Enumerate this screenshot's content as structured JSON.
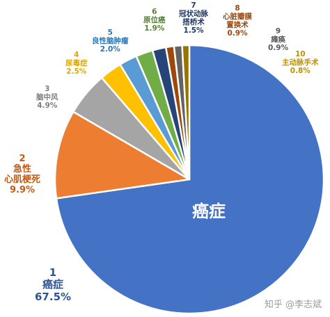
{
  "chart_data": {
    "type": "pie",
    "start_angle_deg": 0,
    "direction": "clockwise",
    "slices": [
      {
        "rank": "1",
        "name": "癌症",
        "value": 67.5,
        "pct": "67.5%",
        "color": "#4472C4",
        "label_color": "#2F5597"
      },
      {
        "rank": "2",
        "name": "急性心肌梗死",
        "name_lines": [
          "急性",
          "心肌梗死"
        ],
        "value": 9.9,
        "pct": "9.9%",
        "color": "#ED7D31",
        "label_color": "#C55A11"
      },
      {
        "rank": "3",
        "name": "脑中风",
        "value": 4.9,
        "pct": "4.9%",
        "color": "#A5A5A5",
        "label_color": "#7F7F7F"
      },
      {
        "rank": "4",
        "name": "尿毒症",
        "value": 2.5,
        "pct": "2.5%",
        "color": "#FFC000",
        "label_color": "#E0A800"
      },
      {
        "rank": "5",
        "name": "良性脑肿瘤",
        "value": 2.0,
        "pct": "2.0%",
        "color": "#5B9BD5",
        "label_color": "#2E75B6"
      },
      {
        "rank": "6",
        "name": "原位癌",
        "value": 1.9,
        "pct": "1.9%",
        "color": "#70AD47",
        "label_color": "#548235"
      },
      {
        "rank": "7",
        "name": "冠状动脉搭桥术",
        "name_lines": [
          "冠状动脉",
          "搭桥术"
        ],
        "value": 1.5,
        "pct": "1.5%",
        "color": "#264478",
        "label_color": "#1F3864"
      },
      {
        "rank": "8",
        "name": "心脏瓣膜置换术",
        "name_lines": [
          "心脏瓣膜",
          "置换术"
        ],
        "value": 0.9,
        "pct": "0.9%",
        "color": "#9E480E",
        "label_color": "#9E480E"
      },
      {
        "rank": "9",
        "name": "瘫痪",
        "value": 0.9,
        "pct": "0.9%",
        "color": "#636363",
        "label_color": "#595959"
      },
      {
        "rank": "10",
        "name": "主动脉手术",
        "value": 0.8,
        "pct": "0.8%",
        "color": "#997300",
        "label_color": "#BF8F00"
      }
    ],
    "inner_label": "癌症"
  },
  "watermark": "知乎 @李志斌"
}
